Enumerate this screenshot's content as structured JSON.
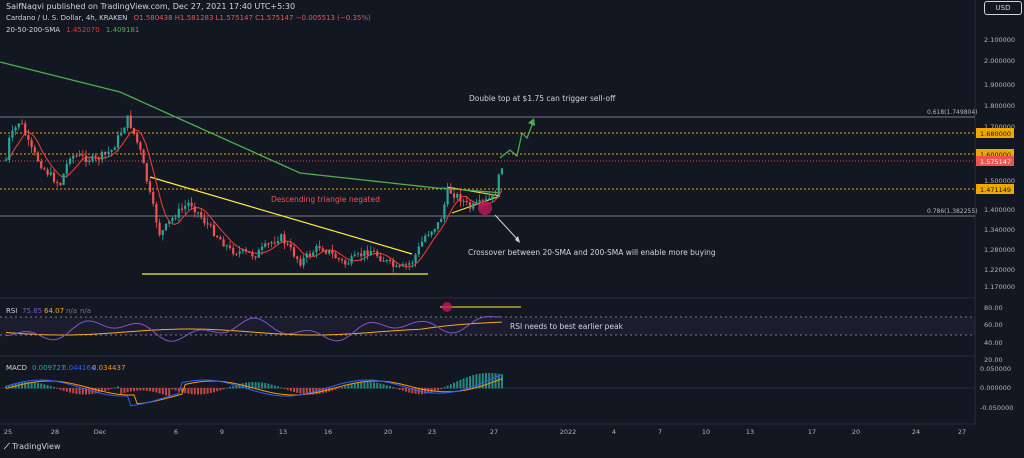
{
  "header": {
    "publisher": "SaifNaqvi published on TradingView.com, Dec 27, 2021 17:40 UTC+5:30",
    "symbol": "Cardano / U. S. Dollar, 4h, KRAKEN",
    "ohlc": "O1.580438  H1.581283  L1.575147  C1.575147  −0.005513 (−0.35%)",
    "sma_label": "20-50-200-SMA",
    "sma_vals": [
      "1.452070",
      "1.409181"
    ],
    "currency_pill": "USD"
  },
  "price_axis": {
    "ticks": [
      "2.100000",
      "2.000000",
      "1.900000",
      "1.800000",
      "1.700000",
      "1.500000",
      "1.400000",
      "1.340000",
      "1.280000",
      "1.220000",
      "1.170000"
    ],
    "tags": [
      {
        "text": "1.680000",
        "color": "#f0a800",
        "fg": "#131722"
      },
      {
        "text": "1.600000",
        "color": "#f0a800",
        "fg": "#131722"
      },
      {
        "text": "1.575147",
        "color": "#ef5350",
        "fg": "#ffffff"
      },
      {
        "text": "1.471149",
        "color": "#f0a800",
        "fg": "#131722"
      }
    ]
  },
  "annotations": {
    "double_top": "Double top at $1.75 can trigger sell-off",
    "fib618": "0.618(1.749804)",
    "fib786": "0.786(1.382255)",
    "desc_triangle": "Descending triangle negated",
    "crossover": "Crossover between 20-SMA and 200-SMA will enable more buying",
    "rsi_note": "RSI needs to best earlier peak"
  },
  "rsi": {
    "label": "RSI",
    "values": [
      "75.85",
      "64.07",
      "n/a",
      "n/a"
    ],
    "ticks": [
      "80.00",
      "60.00",
      "40.00",
      "20.00"
    ]
  },
  "macd": {
    "label": "MACD",
    "values": [
      "0.009727",
      "0.044164",
      "0.034437"
    ],
    "ticks": [
      "0.050000",
      "0.000000",
      "-0.050000"
    ]
  },
  "time_axis": [
    "25",
    "28",
    "Dec",
    "6",
    "9",
    "13",
    "16",
    "20",
    "23",
    "27",
    "2022",
    "4",
    "7",
    "10",
    "13",
    "17",
    "20",
    "24",
    "27"
  ],
  "footer": {
    "brand": "TradingView"
  },
  "colors": {
    "bg": "#131722",
    "up": "#26a69a",
    "down": "#ef5350",
    "sma20": "#e53935",
    "sma200": "#4caf50",
    "triangle": "#ffeb3b",
    "rsi": "#7e57c2",
    "rsi_ma": "#f9a825"
  }
}
